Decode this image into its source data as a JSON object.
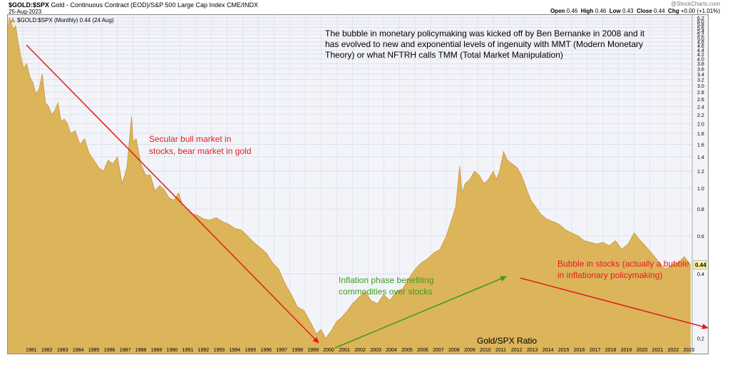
{
  "header": {
    "symbol": "$GOLD:$SPX",
    "description": "Gold - Continuous Contract (EOD)/S&P 500 Large Cap Index",
    "exchange": "CME/INDX",
    "date": "25-Aug-2023",
    "credit": "@StockCharts.com",
    "quote": {
      "open_label": "Open",
      "open": "0.46",
      "high_label": "High",
      "high": "0.46",
      "low_label": "Low",
      "low": "0.43",
      "close_label": "Close",
      "close": "0.44",
      "chg_label": "Chg",
      "chg": "+0.00 (+1.01%)"
    },
    "legend_label": "$GOLD:$SPX (Monthly) 0.44 (24 Aug)"
  },
  "annotations": {
    "bubble_note": "The bubble in monetary policymaking was kicked off by Ben Bernanke in 2008 and it has evolved to new and exponential levels of ingenuity with MMT (Modern Monetary Theory) or what NFTRH calls TMM (Total Market Manipulation)",
    "secular_line1": "Secular bull market in",
    "secular_line2": "stocks, bear market in gold",
    "inflation_line1": "Inflation phase benefiting",
    "inflation_line2": "commodities over stocks",
    "bubble_line1": "Bubble in stocks (actually a bubble",
    "bubble_line2": "in inflationary policymaking)",
    "ratio_label": "Gold/SPX Ratio",
    "last_value_tag": "0.44"
  },
  "colors": {
    "area": "#dcb45a",
    "area_edge": "#c99a3c",
    "arrow_red": "#e31c1c",
    "arrow_green": "#3d9b1f",
    "text_red": "#e31c1c",
    "text_green": "#3d9b1f",
    "tag_bg": "#fff3a0"
  },
  "chart_data": {
    "type": "area",
    "title": "$GOLD:$SPX",
    "xlabel": "",
    "ylabel": "",
    "scale": "log",
    "ylim": [
      0.17,
      6.4
    ],
    "xlim": [
      1980.0,
      2023.7
    ],
    "y_ticks": [
      0.2,
      0.4,
      0.6,
      0.8,
      1.0,
      1.2,
      1.4,
      1.6,
      1.8,
      2.0,
      2.2,
      2.4,
      2.6,
      2.8,
      3.0,
      3.2,
      3.4,
      3.6,
      3.8,
      4.0,
      4.2,
      4.4,
      4.6,
      4.8,
      5.0,
      5.2,
      5.4,
      5.6,
      5.8,
      6.0,
      6.2
    ],
    "x_ticks": [
      "1981",
      "1982",
      "1983",
      "1984",
      "1985",
      "1986",
      "1987",
      "1988",
      "1989",
      "1990",
      "1991",
      "1992",
      "1993",
      "1994",
      "1995",
      "1996",
      "1997",
      "1998",
      "1999",
      "2000",
      "2001",
      "2002",
      "2003",
      "2004",
      "2005",
      "2006",
      "2007",
      "2008",
      "2009",
      "2010",
      "2011",
      "2012",
      "2013",
      "2014",
      "2015",
      "2016",
      "2017",
      "2018",
      "2019",
      "2020",
      "2021",
      "2022",
      "2023"
    ],
    "grid": true,
    "series": [
      {
        "x": [
          1980.0,
          1980.1,
          1980.2,
          1980.35,
          1980.5,
          1980.65,
          1980.8,
          1981.0,
          1981.2,
          1981.4,
          1981.6,
          1981.8,
          1982.0,
          1982.2,
          1982.4,
          1982.6,
          1982.8,
          1983.0,
          1983.2,
          1983.4,
          1983.6,
          1983.8,
          1984.0,
          1984.3,
          1984.6,
          1984.9,
          1985.2,
          1985.5,
          1985.8,
          1986.1,
          1986.4,
          1986.7,
          1987.0,
          1987.3,
          1987.6,
          1987.9,
          1988.0,
          1988.2,
          1988.5,
          1988.8,
          1989.1,
          1989.4,
          1989.7,
          1990.0,
          1990.3,
          1990.6,
          1990.9,
          1991.2,
          1991.5,
          1991.8,
          1992.1,
          1992.5,
          1992.9,
          1993.3,
          1993.7,
          1994.1,
          1994.5,
          1994.9,
          1995.3,
          1995.7,
          1996.1,
          1996.5,
          1996.9,
          1997.3,
          1997.7,
          1998.1,
          1998.5,
          1998.9,
          1999.3,
          1999.7,
          2000.0,
          2000.3,
          2000.7,
          2001.0,
          2001.3,
          2001.7,
          2002.0,
          2002.4,
          2002.8,
          2003.2,
          2003.6,
          2004.0,
          2004.4,
          2004.8,
          2005.2,
          2005.6,
          2006.0,
          2006.4,
          2006.8,
          2007.2,
          2007.6,
          2008.0,
          2008.3,
          2008.6,
          2008.85,
          2009.0,
          2009.2,
          2009.5,
          2009.8,
          2010.1,
          2010.4,
          2010.7,
          2011.0,
          2011.2,
          2011.4,
          2011.65,
          2011.9,
          2012.2,
          2012.5,
          2012.8,
          2013.1,
          2013.4,
          2013.7,
          2014.0,
          2014.4,
          2014.8,
          2015.2,
          2015.6,
          2016.0,
          2016.4,
          2016.8,
          2017.2,
          2017.6,
          2018.0,
          2018.4,
          2018.8,
          2019.2,
          2019.6,
          2020.0,
          2020.3,
          2020.6,
          2020.9,
          2021.2,
          2021.6,
          2022.0,
          2022.4,
          2022.8,
          2023.2,
          2023.6
        ],
        "y": [
          5.5,
          6.25,
          5.9,
          5.5,
          5.7,
          4.8,
          4.2,
          3.6,
          3.8,
          3.3,
          3.1,
          2.75,
          2.9,
          3.4,
          2.5,
          2.4,
          2.2,
          2.3,
          2.5,
          2.05,
          2.1,
          2.0,
          1.8,
          1.85,
          1.6,
          1.7,
          1.45,
          1.35,
          1.25,
          1.2,
          1.35,
          1.3,
          1.4,
          1.05,
          1.25,
          2.15,
          1.65,
          1.7,
          1.3,
          1.15,
          1.15,
          0.97,
          1.03,
          0.98,
          0.9,
          0.88,
          0.95,
          0.82,
          0.8,
          0.76,
          0.75,
          0.72,
          0.71,
          0.73,
          0.7,
          0.68,
          0.65,
          0.64,
          0.6,
          0.56,
          0.53,
          0.5,
          0.45,
          0.42,
          0.36,
          0.32,
          0.28,
          0.27,
          0.24,
          0.21,
          0.22,
          0.2,
          0.22,
          0.24,
          0.25,
          0.27,
          0.29,
          0.31,
          0.33,
          0.3,
          0.29,
          0.32,
          0.3,
          0.33,
          0.34,
          0.38,
          0.42,
          0.45,
          0.47,
          0.5,
          0.52,
          0.6,
          0.7,
          0.82,
          1.27,
          0.95,
          1.05,
          1.1,
          1.2,
          1.15,
          1.05,
          1.1,
          1.2,
          1.1,
          1.2,
          1.48,
          1.35,
          1.3,
          1.25,
          1.15,
          1.0,
          0.88,
          0.82,
          0.76,
          0.72,
          0.7,
          0.68,
          0.64,
          0.62,
          0.6,
          0.57,
          0.56,
          0.55,
          0.56,
          0.54,
          0.57,
          0.52,
          0.55,
          0.62,
          0.58,
          0.55,
          0.52,
          0.49,
          0.45,
          0.42,
          0.44,
          0.45,
          0.48,
          0.44
        ]
      }
    ]
  }
}
